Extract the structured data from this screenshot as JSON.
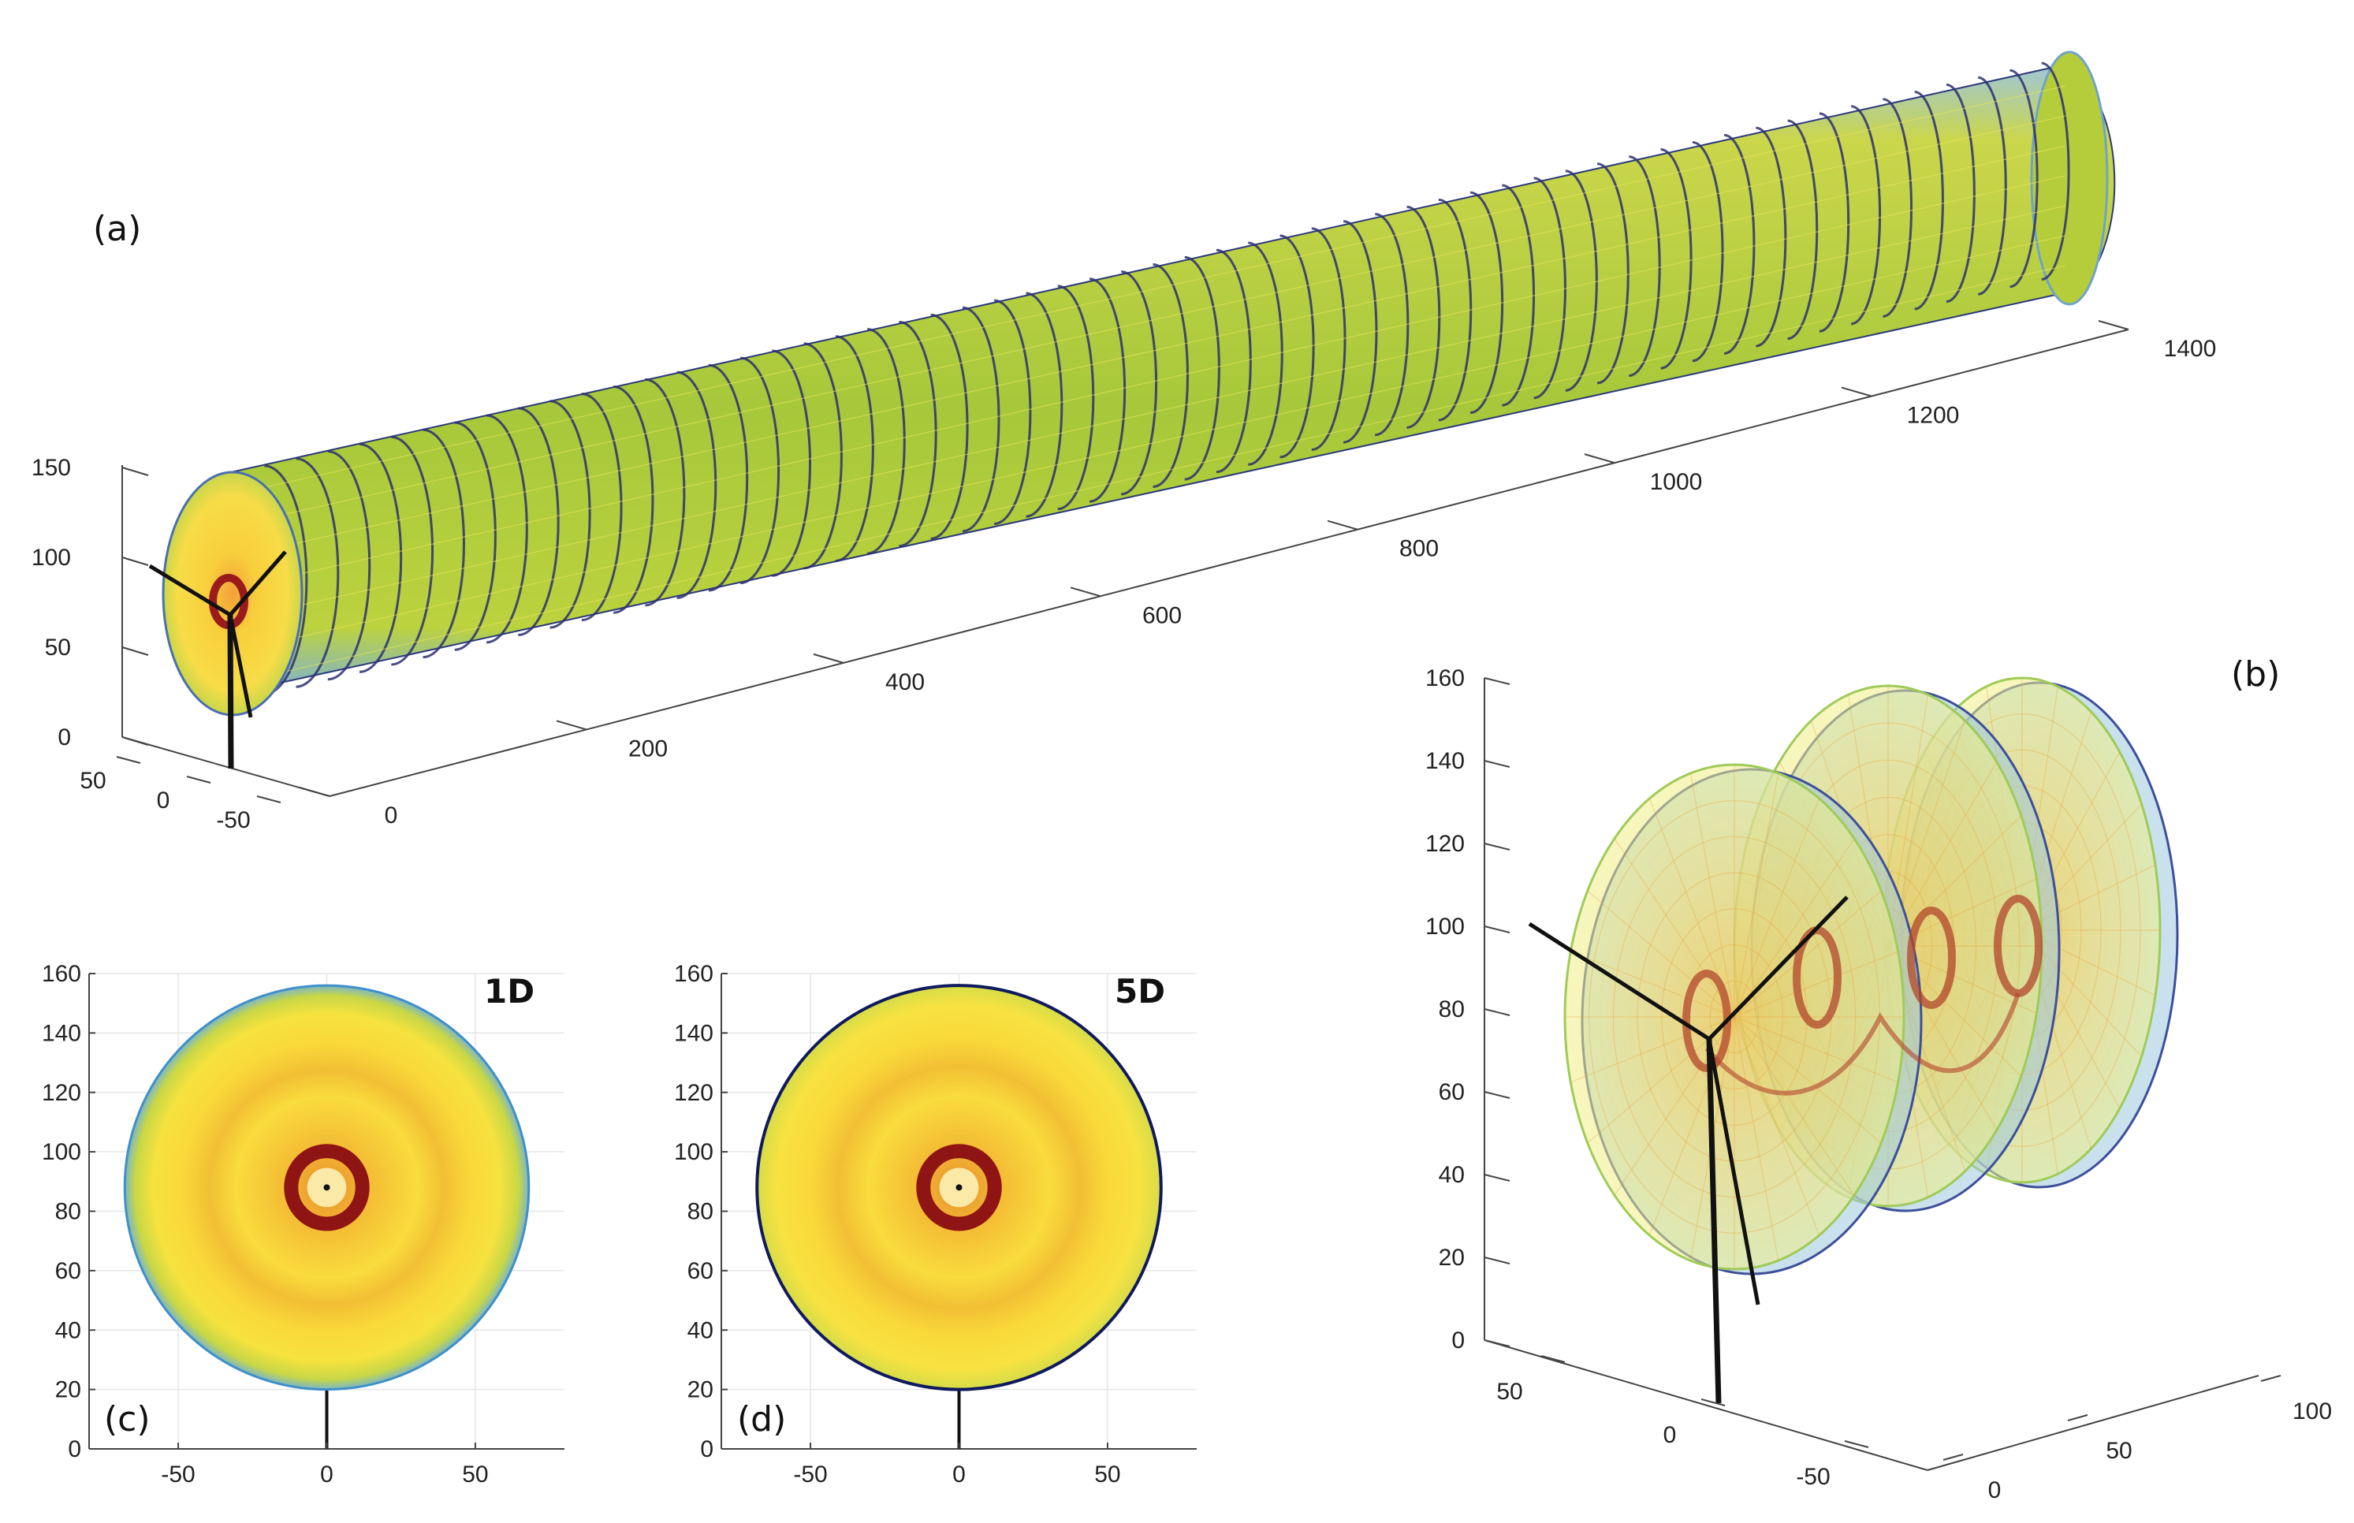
{
  "chart_data": [
    {
      "id": "a",
      "panel_label": "(a)",
      "type": "3d-surface",
      "x_ticks": [
        "0",
        "200",
        "400",
        "600",
        "800",
        "1000",
        "1200",
        "1400"
      ],
      "y_ticks": [
        "50",
        "0",
        "-50"
      ],
      "z_ticks": [
        "0",
        "50",
        "100",
        "150"
      ],
      "xlim": [
        0,
        1400
      ],
      "ylim": [
        -75,
        75
      ],
      "zlim": [
        0,
        150
      ],
      "cylinder": {
        "x_start": 0,
        "x_end": 1400,
        "radius": 68,
        "hub_height": 88
      },
      "colors": {
        "body": "#a8cc3c",
        "ring": "#2b2f6e",
        "near_face": "#f7d63a",
        "core": "#9a1b1b"
      }
    },
    {
      "id": "b",
      "panel_label": "(b)",
      "type": "3d-surface",
      "x_ticks": [
        "0",
        "50",
        "100"
      ],
      "y_ticks": [
        "50",
        "0",
        "-50"
      ],
      "z_ticks": [
        "0",
        "20",
        "40",
        "60",
        "80",
        "100",
        "120",
        "140",
        "160"
      ],
      "xlim": [
        0,
        100
      ],
      "ylim": [
        -75,
        75
      ],
      "zlim": [
        0,
        160
      ],
      "colors": {
        "disc_fill": "#f7e56a",
        "disc_edge": "#7fb8d6",
        "vortex": "#b2452b"
      }
    },
    {
      "id": "c",
      "panel_label": "(c)",
      "corner_label": "1D",
      "type": "heatmap",
      "x_ticks": [
        "-50",
        "0",
        "50"
      ],
      "y_ticks": [
        "0",
        "20",
        "40",
        "60",
        "80",
        "100",
        "120",
        "140",
        "160"
      ],
      "xlim": [
        -80,
        80
      ],
      "ylim": [
        0,
        160
      ],
      "disc": {
        "center_x": 0,
        "center_y": 88,
        "radius": 68
      },
      "colors": {
        "edge": "#3f8fc9",
        "fill": "#f9d73a",
        "ring": "#8f1414"
      }
    },
    {
      "id": "d",
      "panel_label": "(d)",
      "corner_label": "5D",
      "type": "heatmap",
      "x_ticks": [
        "-50",
        "0",
        "50"
      ],
      "y_ticks": [
        "0",
        "20",
        "40",
        "60",
        "80",
        "100",
        "120",
        "140",
        "160"
      ],
      "xlim": [
        -80,
        80
      ],
      "ylim": [
        0,
        160
      ],
      "disc": {
        "center_x": 0,
        "center_y": 88,
        "radius": 68
      },
      "colors": {
        "edge": "#0f1a5e",
        "fill": "#f9d73a",
        "ring": "#8f1414"
      }
    }
  ]
}
